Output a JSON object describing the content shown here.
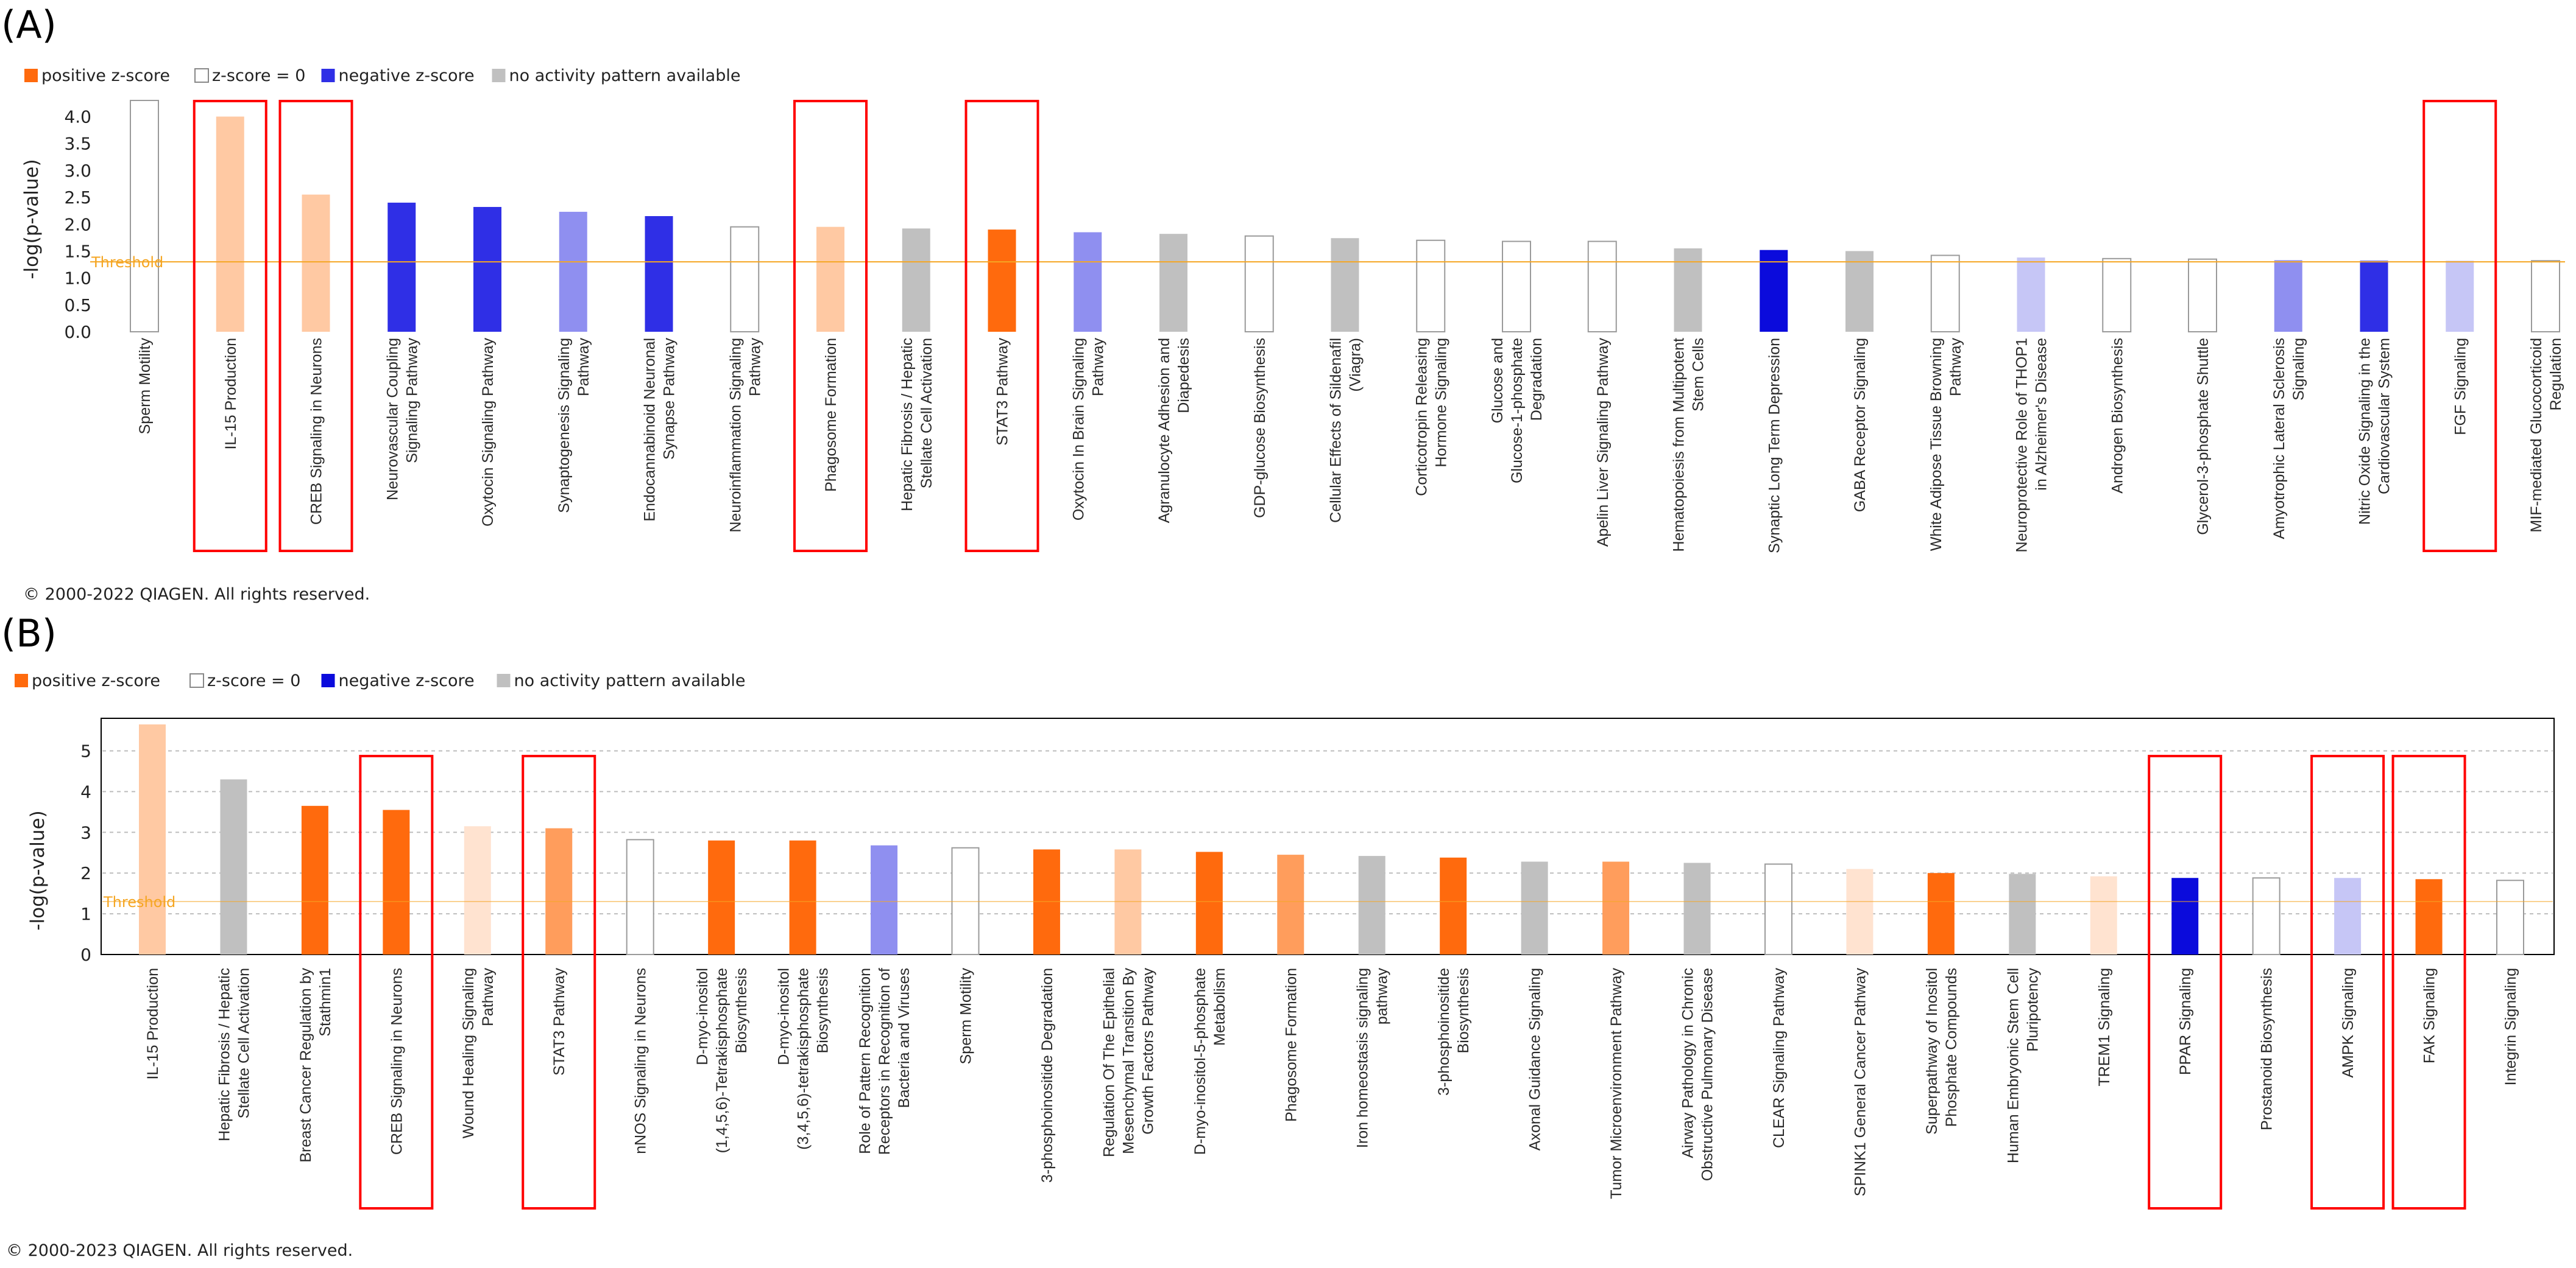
{
  "colors": {
    "positive_strong": "#ff6a0d",
    "positive_mid": "#ff9d5c",
    "positive_light": "#ffc9a3",
    "positive_faint": "#ffe3d0",
    "negative_strong": "#0b0bdc",
    "negative_mid": "#2f2fe6",
    "negative_light": "#8f8ff0",
    "negative_faint": "#c6c6f6",
    "none": "#ffffff",
    "gray": "#c0c0c0",
    "threshold": "#f5a623",
    "highlight": "#ff0000"
  },
  "chart_data": [
    {
      "panel_label": "(A)",
      "type": "bar",
      "ylabel": "-log(p-value)",
      "ylim": [
        0,
        4.3
      ],
      "yticks": [
        "0.0",
        "0.5",
        "1.0",
        "1.5",
        "2.0",
        "2.5",
        "3.0",
        "3.5",
        "4.0"
      ],
      "threshold": 1.3,
      "threshold_label": "Threshold",
      "legend": [
        {
          "label": "positive z-score",
          "swatch": "positive_strong"
        },
        {
          "label": "z-score = 0",
          "swatch": "none"
        },
        {
          "label": "negative z-score",
          "swatch": "negative_mid"
        },
        {
          "label": "no activity pattern available",
          "swatch": "gray"
        }
      ],
      "copyright": "© 2000-2022 QIAGEN. All rights reserved.",
      "bars": [
        {
          "category": "Sperm Motility",
          "value": 4.3,
          "color": "none",
          "highlight": false
        },
        {
          "category": "IL-15 Production",
          "value": 4.0,
          "color": "positive_light",
          "highlight": true
        },
        {
          "category": "CREB Signaling in Neurons",
          "value": 2.55,
          "color": "positive_light",
          "highlight": true
        },
        {
          "category": "Neurovascular Coupling Signaling Pathway",
          "value": 2.4,
          "color": "negative_mid",
          "highlight": false
        },
        {
          "category": "Oxytocin Signaling Pathway",
          "value": 2.32,
          "color": "negative_mid",
          "highlight": false
        },
        {
          "category": "Synaptogenesis Signaling Pathway",
          "value": 2.23,
          "color": "negative_light",
          "highlight": false
        },
        {
          "category": "Endocannabinoid Neuronal Synapse Pathway",
          "value": 2.15,
          "color": "negative_mid",
          "highlight": false
        },
        {
          "category": "Neuroinflammation Signaling Pathway",
          "value": 1.95,
          "color": "none",
          "highlight": false
        },
        {
          "category": "Phagosome Formation",
          "value": 1.95,
          "color": "positive_light",
          "highlight": true
        },
        {
          "category": "Hepatic Fibrosis / Hepatic Stellate Cell Activation",
          "value": 1.92,
          "color": "gray",
          "highlight": false
        },
        {
          "category": "STAT3 Pathway",
          "value": 1.9,
          "color": "positive_strong",
          "highlight": true
        },
        {
          "category": "Oxytocin In Brain Signaling Pathway",
          "value": 1.85,
          "color": "negative_light",
          "highlight": false
        },
        {
          "category": "Agranulocyte Adhesion and Diapedesis",
          "value": 1.82,
          "color": "gray",
          "highlight": false
        },
        {
          "category": "GDP-glucose Biosynthesis",
          "value": 1.78,
          "color": "none",
          "highlight": false
        },
        {
          "category": "Cellular Effects of Sildenafil (Viagra)",
          "value": 1.74,
          "color": "gray",
          "highlight": false
        },
        {
          "category": "Corticotropin Releasing Hormone Signaling",
          "value": 1.7,
          "color": "none",
          "highlight": false
        },
        {
          "category": "Glucose and Glucose-1-phosphate Degradation",
          "value": 1.68,
          "color": "none",
          "highlight": false
        },
        {
          "category": "Apelin Liver Signaling Pathway",
          "value": 1.68,
          "color": "none",
          "highlight": false
        },
        {
          "category": "Hematopoiesis from Multipotent Stem Cells",
          "value": 1.55,
          "color": "gray",
          "highlight": false
        },
        {
          "category": "Synaptic Long Term Depression",
          "value": 1.52,
          "color": "negative_strong",
          "highlight": false
        },
        {
          "category": "GABA Receptor Signaling",
          "value": 1.5,
          "color": "gray",
          "highlight": false
        },
        {
          "category": "White Adipose Tissue Browning Pathway",
          "value": 1.42,
          "color": "none",
          "highlight": false
        },
        {
          "category": "Neuroprotective Role of THOP1 in Alzheimer's Disease",
          "value": 1.38,
          "color": "negative_faint",
          "highlight": false
        },
        {
          "category": "Androgen Biosynthesis",
          "value": 1.36,
          "color": "none",
          "highlight": false
        },
        {
          "category": "Glycerol-3-phosphate Shuttle",
          "value": 1.35,
          "color": "none",
          "highlight": false
        },
        {
          "category": "Amyotrophic Lateral Sclerosis Signaling",
          "value": 1.33,
          "color": "negative_light",
          "highlight": false
        },
        {
          "category": "Nitric Oxide Signaling in the Cardiovascular System",
          "value": 1.32,
          "color": "negative_mid",
          "highlight": false
        },
        {
          "category": "FGF Signaling",
          "value": 1.32,
          "color": "negative_faint",
          "highlight": true
        },
        {
          "category": "MIF-mediated Glucocorticoid Regulation",
          "value": 1.32,
          "color": "none",
          "highlight": false
        }
      ]
    },
    {
      "panel_label": "(B)",
      "type": "bar",
      "ylabel": "-log(p-value)",
      "ylim": [
        0,
        5.8
      ],
      "yticks": [
        "0",
        "1",
        "2",
        "3",
        "4",
        "5"
      ],
      "threshold": 1.3,
      "threshold_label": "Threshold",
      "legend": [
        {
          "label": "positive z-score",
          "swatch": "positive_strong"
        },
        {
          "label": "z-score = 0",
          "swatch": "none"
        },
        {
          "label": "negative z-score",
          "swatch": "negative_strong"
        },
        {
          "label": "no activity pattern available",
          "swatch": "gray"
        }
      ],
      "copyright": "© 2000-2023 QIAGEN. All rights reserved.",
      "bars": [
        {
          "category": "IL-15 Production",
          "value": 5.65,
          "color": "positive_light",
          "highlight": false
        },
        {
          "category": "Hepatic Fibrosis / Hepatic Stellate Cell Activation",
          "value": 4.3,
          "color": "gray",
          "highlight": false
        },
        {
          "category": "Breast Cancer Regulation by Stathmin1",
          "value": 3.65,
          "color": "positive_strong",
          "highlight": false
        },
        {
          "category": "CREB Signaling in Neurons",
          "value": 3.55,
          "color": "positive_strong",
          "highlight": true
        },
        {
          "category": "Wound Healing Signaling Pathway",
          "value": 3.15,
          "color": "positive_faint",
          "highlight": false
        },
        {
          "category": "STAT3 Pathway",
          "value": 3.1,
          "color": "positive_mid",
          "highlight": true
        },
        {
          "category": "nNOS Signaling in Neurons",
          "value": 2.82,
          "color": "none",
          "highlight": false
        },
        {
          "category": "D-myo-inositol (1,4,5,6)-Tetrakisphosphate Biosynthesis",
          "value": 2.8,
          "color": "positive_strong",
          "highlight": false
        },
        {
          "category": "D-myo-inositol (3,4,5,6)-tetrakisphosphate Biosynthesis",
          "value": 2.8,
          "color": "positive_strong",
          "highlight": false
        },
        {
          "category": "Role of Pattern Recognition Receptors in Recognition of Bacteria and Viruses",
          "value": 2.68,
          "color": "negative_light",
          "highlight": false
        },
        {
          "category": "Sperm Motility",
          "value": 2.62,
          "color": "none",
          "highlight": false
        },
        {
          "category": "3-phosphoinositide Degradation",
          "value": 2.58,
          "color": "positive_strong",
          "highlight": false
        },
        {
          "category": "Regulation Of The Epithelial Mesenchymal Transition By Growth Factors Pathway",
          "value": 2.58,
          "color": "positive_light",
          "highlight": false
        },
        {
          "category": "D-myo-inositol-5-phosphate Metabolism",
          "value": 2.52,
          "color": "positive_strong",
          "highlight": false
        },
        {
          "category": "Phagosome Formation",
          "value": 2.45,
          "color": "positive_mid",
          "highlight": false
        },
        {
          "category": "Iron homeostasis signaling pathway",
          "value": 2.42,
          "color": "gray",
          "highlight": false
        },
        {
          "category": "3-phosphoinositide Biosynthesis",
          "value": 2.38,
          "color": "positive_strong",
          "highlight": false
        },
        {
          "category": "Axonal Guidance Signaling",
          "value": 2.28,
          "color": "gray",
          "highlight": false
        },
        {
          "category": "Tumor Microenvironment Pathway",
          "value": 2.28,
          "color": "positive_mid",
          "highlight": false
        },
        {
          "category": "Airway Pathology in Chronic Obstructive Pulmonary Disease",
          "value": 2.25,
          "color": "gray",
          "highlight": false
        },
        {
          "category": "CLEAR Signaling Pathway",
          "value": 2.22,
          "color": "none",
          "highlight": false
        },
        {
          "category": "SPINK1 General Cancer Pathway",
          "value": 2.1,
          "color": "positive_faint",
          "highlight": false
        },
        {
          "category": "Superpathway of Inositol Phosphate Compounds",
          "value": 2.0,
          "color": "positive_strong",
          "highlight": false
        },
        {
          "category": "Human Embryonic Stem Cell Pluripotency",
          "value": 1.98,
          "color": "gray",
          "highlight": false
        },
        {
          "category": "TREM1 Signaling",
          "value": 1.92,
          "color": "positive_faint",
          "highlight": false
        },
        {
          "category": "PPAR Signaling",
          "value": 1.88,
          "color": "negative_strong",
          "highlight": true
        },
        {
          "category": "Prostanoid Biosynthesis",
          "value": 1.88,
          "color": "none",
          "highlight": false
        },
        {
          "category": "AMPK Signaling",
          "value": 1.88,
          "color": "negative_faint",
          "highlight": true
        },
        {
          "category": "FAK Signaling",
          "value": 1.85,
          "color": "positive_strong",
          "highlight": true
        },
        {
          "category": "Integrin Signaling",
          "value": 1.82,
          "color": "none",
          "highlight": false
        }
      ]
    }
  ]
}
